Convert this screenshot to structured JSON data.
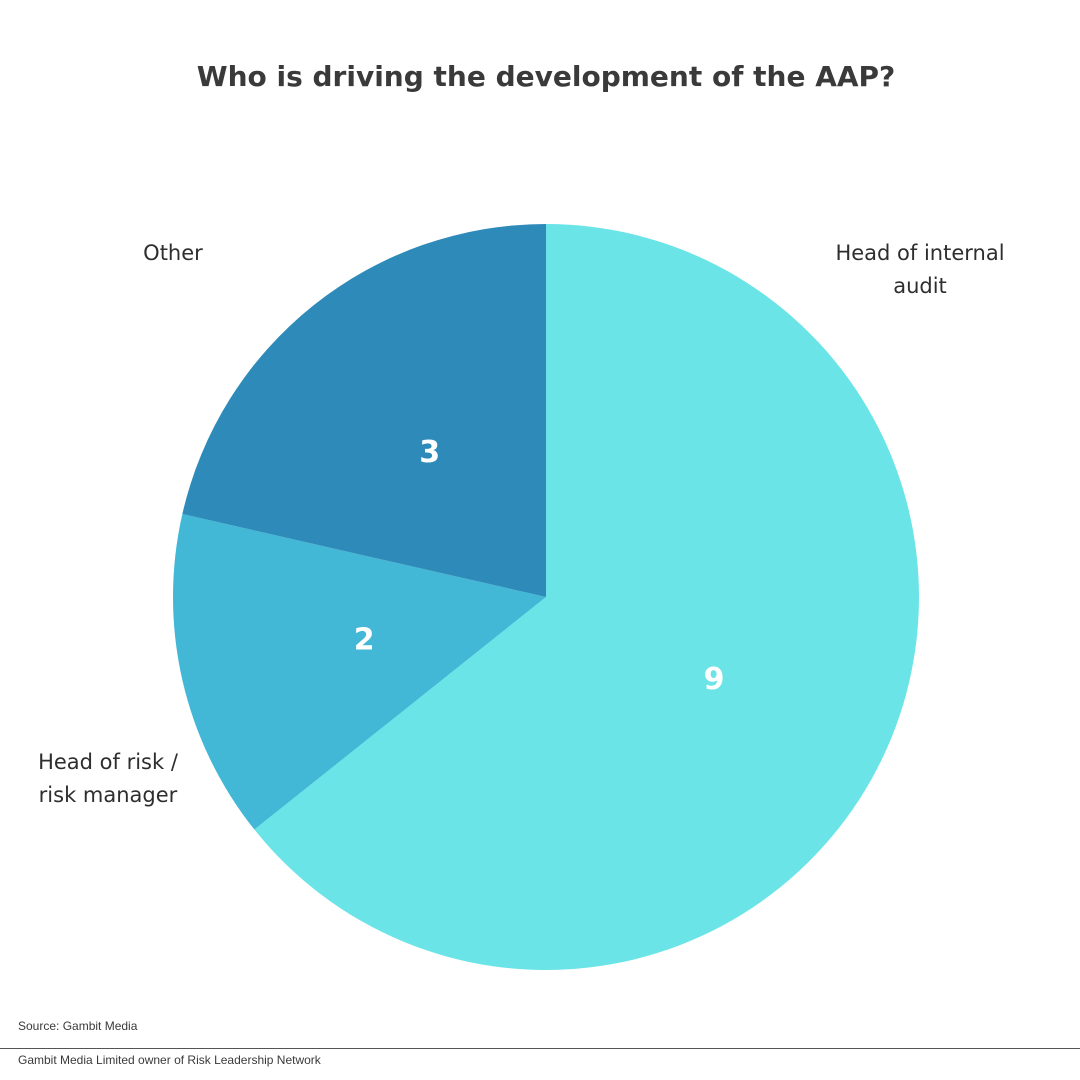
{
  "chart_data": {
    "type": "pie",
    "title": "Who is driving the development of the AAP?",
    "categories": [
      "Head of internal audit",
      "Head of risk / risk manager",
      "Other"
    ],
    "values": [
      9,
      2,
      3
    ],
    "category_label_lines": [
      [
        "Head of internal",
        "audit"
      ],
      [
        "Head of risk /",
        "risk manager"
      ],
      [
        "Other"
      ]
    ],
    "colors": [
      "#6be4e8",
      "#42b7d6",
      "#2e8bb9"
    ],
    "start": "12 o'clock, clockwise",
    "legend": "none"
  },
  "footer": {
    "source": "Source: Gambit Media",
    "owner": "Gambit Media Limited owner of Risk Leadership Network"
  }
}
